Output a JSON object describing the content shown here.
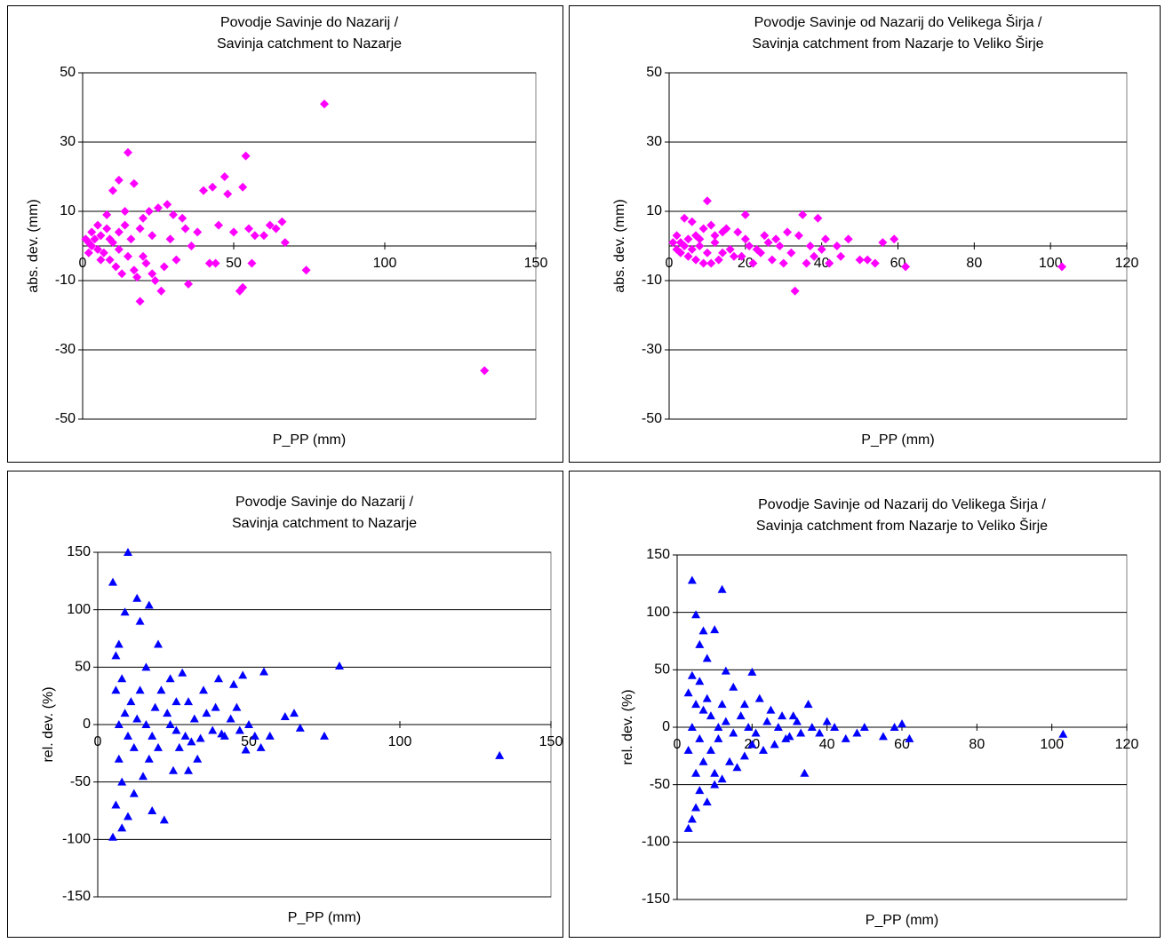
{
  "chart_data": [
    {
      "type": "scatter",
      "title": [
        "Povodje Savinje do Nazarij /",
        "Savinja catchment to Nazarje"
      ],
      "xlabel": "P_PP (mm)",
      "ylabel": "abs. dev. (mm)",
      "marker": "diamond",
      "color": "#ff00ff",
      "xlim": [
        0,
        150
      ],
      "xticks": [
        0,
        50,
        100,
        150
      ],
      "ylim": [
        -50,
        50
      ],
      "yticks": [
        -50,
        -30,
        -10,
        10,
        30,
        50
      ],
      "grid": true,
      "x": [
        80,
        133,
        15,
        54,
        47,
        17,
        12,
        53,
        40,
        43,
        48,
        66,
        74,
        53,
        52,
        42,
        19,
        26,
        35,
        67,
        60,
        55,
        56,
        45,
        38,
        30,
        33,
        28,
        25,
        22,
        10,
        20,
        2,
        3,
        4,
        5,
        6,
        7,
        8,
        9,
        10,
        11,
        12,
        13,
        14,
        15,
        16,
        18,
        21,
        23,
        24,
        27,
        29,
        31,
        34,
        36,
        1,
        2,
        3,
        5,
        6,
        8,
        9,
        12,
        14,
        17,
        19,
        20,
        23,
        44,
        50,
        57,
        62,
        64
      ],
      "values": [
        41,
        -36,
        27,
        26,
        20,
        18,
        19,
        17,
        16,
        17,
        15,
        7,
        -7,
        -12,
        -13,
        -5,
        -16,
        -13,
        -11,
        1,
        3,
        5,
        -5,
        6,
        4,
        9,
        8,
        12,
        11,
        10,
        16,
        8,
        1,
        0,
        2,
        -1,
        3,
        -2,
        5,
        -4,
        1,
        -6,
        4,
        -8,
        6,
        -3,
        2,
        -9,
        -5,
        3,
        -10,
        -6,
        2,
        -4,
        5,
        0,
        2,
        -2,
        4,
        6,
        -4,
        9,
        2,
        -1,
        10,
        -7,
        5,
        -3,
        -8,
        -5,
        4,
        3,
        6,
        5
      ]
    },
    {
      "type": "scatter",
      "title": [
        "Povodje Savinje od Nazarij do Velikega Širja /",
        "Savinja catchment from Nazarje to Veliko Širje"
      ],
      "xlabel": "P_PP (mm)",
      "ylabel": "abs. dev. (mm)",
      "marker": "diamond",
      "color": "#ff00ff",
      "xlim": [
        0,
        120
      ],
      "xticks": [
        0,
        20,
        40,
        60,
        80,
        100,
        120
      ],
      "ylim": [
        -50,
        50
      ],
      "yticks": [
        -50,
        -30,
        -10,
        10,
        30,
        50
      ],
      "grid": true,
      "x": [
        103,
        62,
        59,
        56,
        50,
        52,
        47,
        44,
        41,
        39,
        35,
        33,
        30,
        28,
        25,
        10,
        20,
        18,
        15,
        12,
        8,
        6,
        4,
        2,
        1,
        3,
        5,
        7,
        9,
        11,
        13,
        14,
        16,
        19,
        21,
        22,
        24,
        26,
        27,
        29,
        31,
        32,
        34,
        36,
        37,
        38,
        40,
        42,
        45,
        54,
        3,
        5,
        6,
        8,
        10,
        12,
        14,
        17,
        20,
        23,
        2,
        4,
        7,
        9,
        11
      ],
      "values": [
        -6,
        -6,
        2,
        1,
        -4,
        -4,
        2,
        0,
        2,
        8,
        9,
        -13,
        -5,
        2,
        3,
        13,
        9,
        4,
        5,
        3,
        2,
        7,
        8,
        3,
        1,
        -2,
        -3,
        -4,
        -5,
        -5,
        -4,
        -2,
        -1,
        -3,
        0,
        -5,
        -2,
        1,
        -4,
        0,
        4,
        -2,
        3,
        -5,
        0,
        -3,
        -1,
        -5,
        -3,
        -5,
        1,
        2,
        -1,
        0,
        -2,
        1,
        4,
        -3,
        2,
        -1,
        -1,
        0,
        3,
        5,
        6
      ]
    },
    {
      "type": "scatter",
      "title": [
        "Povodje Savinje do Nazarij /",
        "Savinja catchment to Nazarje"
      ],
      "xlabel": "P_PP (mm)",
      "ylabel": "rel. dev. (%)",
      "marker": "triangle",
      "color": "#0000ff",
      "xlim": [
        0,
        150
      ],
      "xticks": [
        0,
        50,
        100,
        150
      ],
      "ylim": [
        -150,
        150
      ],
      "yticks": [
        -150,
        -100,
        -50,
        0,
        50,
        100,
        150
      ],
      "grid": true,
      "x": [
        5,
        10,
        13,
        17,
        14,
        9,
        7,
        6,
        8,
        20,
        24,
        28,
        30,
        35,
        40,
        45,
        48,
        52,
        55,
        50,
        54,
        62,
        65,
        67,
        75,
        80,
        133,
        6,
        5,
        8,
        10,
        12,
        15,
        18,
        22,
        25,
        30,
        33,
        27,
        20,
        17,
        10,
        7,
        9,
        11,
        13,
        16,
        19,
        23,
        26,
        29,
        32,
        36,
        38,
        42,
        44,
        47,
        57,
        6,
        7,
        8,
        12,
        14,
        16,
        18,
        21,
        24,
        26,
        31,
        34,
        39,
        41,
        46,
        49
      ],
      "values": [
        124,
        150,
        110,
        104,
        90,
        98,
        70,
        60,
        40,
        70,
        40,
        45,
        20,
        30,
        40,
        35,
        43,
        -10,
        46,
        0,
        -20,
        7,
        10,
        -3,
        -10,
        51,
        -27,
        -70,
        -98,
        -90,
        -80,
        -60,
        -45,
        -75,
        -83,
        -40,
        -40,
        -30,
        -20,
        -20,
        -30,
        -10,
        -30,
        10,
        20,
        5,
        0,
        15,
        10,
        -5,
        -10,
        5,
        10,
        -5,
        -10,
        5,
        -5,
        -10,
        30,
        0,
        -50,
        -20,
        30,
        50,
        -10,
        30,
        0,
        20,
        -15,
        -12,
        15,
        -8,
        15,
        -22
      ]
    },
    {
      "type": "scatter",
      "title": [
        "Povodje Savinje od Nazarij do Velikega Širja /",
        "Savinja catchment from Nazarje to Veliko Širje"
      ],
      "xlabel": "P_PP (mm)",
      "ylabel": "rel. dev. (%)",
      "marker": "triangle",
      "color": "#0000ff",
      "xlim": [
        0,
        120
      ],
      "xticks": [
        0,
        20,
        40,
        60,
        80,
        100,
        120
      ],
      "ylim": [
        -150,
        150
      ],
      "yticks": [
        -150,
        -100,
        -50,
        0,
        50,
        100,
        150
      ],
      "grid": true,
      "x": [
        4,
        12,
        5,
        7,
        10,
        6,
        8,
        20,
        13,
        15,
        18,
        22,
        25,
        28,
        32,
        35,
        38,
        40,
        42,
        45,
        48,
        50,
        55,
        58,
        60,
        62,
        103,
        34,
        3,
        4,
        5,
        6,
        8,
        10,
        12,
        14,
        16,
        18,
        20,
        23,
        26,
        30,
        3,
        4,
        5,
        6,
        7,
        9,
        11,
        13,
        15,
        17,
        19,
        21,
        24,
        27,
        29,
        31,
        33,
        36,
        3,
        4,
        5,
        6,
        7,
        8,
        9,
        10,
        11,
        12
      ],
      "values": [
        128,
        120,
        98,
        84,
        85,
        72,
        60,
        48,
        49,
        35,
        20,
        25,
        15,
        10,
        5,
        20,
        -5,
        5,
        0,
        -10,
        -5,
        0,
        -8,
        0,
        3,
        -10,
        -6,
        -40,
        -88,
        -80,
        -70,
        -55,
        -65,
        -50,
        -45,
        -30,
        -35,
        -25,
        -15,
        -20,
        -15,
        -8,
        -20,
        0,
        20,
        40,
        -30,
        10,
        -10,
        5,
        -5,
        10,
        0,
        -5,
        5,
        0,
        -10,
        10,
        -5,
        0,
        30,
        45,
        -40,
        -10,
        15,
        25,
        -20,
        -40,
        0,
        20
      ]
    }
  ]
}
